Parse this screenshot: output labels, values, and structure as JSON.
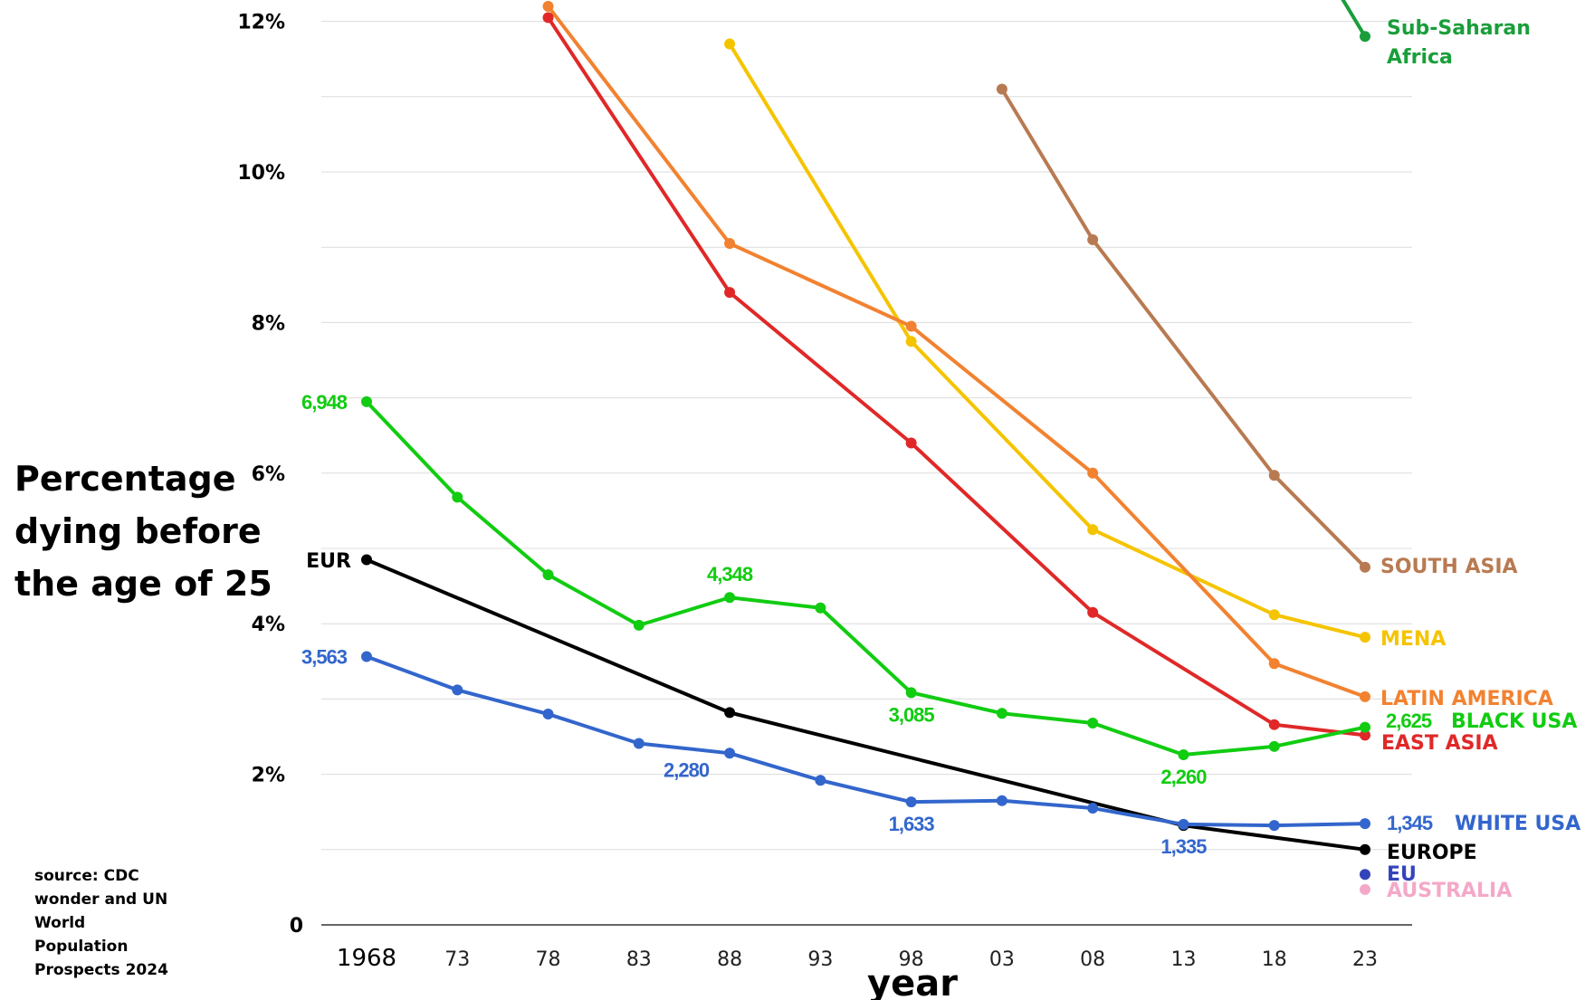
{
  "chart_data": {
    "type": "line",
    "ylabel_lines": [
      "Percentage",
      "dying before",
      "the age of 25"
    ],
    "xlabel": "year",
    "source_lines": [
      "source: CDC",
      "wonder and UN",
      "World",
      "Population",
      "Prospects 2024"
    ],
    "x": [
      1968,
      1973,
      1978,
      1983,
      1988,
      1993,
      1998,
      2003,
      2008,
      2013,
      2018,
      2023
    ],
    "xtick_labels": [
      "1968",
      "73",
      "78",
      "83",
      "88",
      "93",
      "98",
      "03",
      "08",
      "13",
      "18",
      "23"
    ],
    "ylim": [
      0,
      12.2
    ],
    "yticks": [
      0,
      2,
      4,
      6,
      8,
      10,
      12
    ],
    "ytick_labels": [
      "0",
      "2%",
      "4%",
      "6%",
      "8%",
      "10%",
      "12%"
    ],
    "grid": true,
    "series": [
      {
        "name": "Sub-Saharan Africa",
        "label_lines": [
          "Sub-Saharan",
          "Africa"
        ],
        "color": "#1a9e3a",
        "x": [
          2021.5,
          2023
        ],
        "values": [
          12.4,
          11.8
        ]
      },
      {
        "name": "SOUTH ASIA",
        "color": "#b87a52",
        "x": [
          2003,
          2008,
          2018,
          2023
        ],
        "values": [
          11.1,
          9.1,
          5.97,
          4.75
        ]
      },
      {
        "name": "MENA",
        "color": "#f5c400",
        "x": [
          1988,
          1998,
          2008,
          2018,
          2023
        ],
        "values": [
          11.7,
          7.75,
          5.25,
          4.12,
          3.82
        ]
      },
      {
        "name": "LATIN AMERICA",
        "color": "#f28230",
        "x": [
          1978,
          1988,
          1998,
          2008,
          2018,
          2023
        ],
        "values": [
          12.2,
          9.05,
          7.95,
          6.0,
          3.47,
          3.03
        ]
      },
      {
        "name": "EAST ASIA",
        "color": "#e02828",
        "x": [
          1978,
          1988,
          1998,
          2008,
          2018,
          2023
        ],
        "values": [
          12.05,
          8.4,
          6.4,
          4.15,
          2.66,
          2.52
        ]
      },
      {
        "name": "BLACK USA",
        "color": "#11cc11",
        "x": [
          1968,
          1973,
          1978,
          1983,
          1988,
          1993,
          1998,
          2003,
          2008,
          2013,
          2018,
          2023
        ],
        "values": [
          6.948,
          5.68,
          4.65,
          3.98,
          4.348,
          4.21,
          3.085,
          2.81,
          2.68,
          2.26,
          2.37,
          2.625
        ],
        "point_labels": [
          {
            "x": 1968,
            "text": "6,948"
          },
          {
            "x": 1988,
            "text": "4,348"
          },
          {
            "x": 1998,
            "text": "3,085"
          },
          {
            "x": 2013,
            "text": "2,260"
          },
          {
            "x": 2023,
            "text": "2,625"
          }
        ]
      },
      {
        "name": "EUROPE",
        "short_name": "EUR",
        "color": "#000000",
        "x": [
          1968,
          1988,
          2013,
          2023
        ],
        "values": [
          4.85,
          2.82,
          1.32,
          1.0
        ]
      },
      {
        "name": "WHITE USA",
        "color": "#3366cc",
        "x": [
          1968,
          1973,
          1978,
          1983,
          1988,
          1993,
          1998,
          2003,
          2008,
          2013,
          2018,
          2023
        ],
        "values": [
          3.563,
          3.12,
          2.8,
          2.41,
          2.28,
          1.92,
          1.633,
          1.65,
          1.55,
          1.335,
          1.32,
          1.345
        ],
        "point_labels": [
          {
            "x": 1968,
            "text": "3,563"
          },
          {
            "x": 1988,
            "text": "2,280"
          },
          {
            "x": 1998,
            "text": "1,633"
          },
          {
            "x": 2013,
            "text": "1,335"
          },
          {
            "x": 2023,
            "text": "1,345"
          }
        ]
      },
      {
        "name": "EU",
        "color": "#3344bb",
        "x": [
          2023
        ],
        "values": [
          0.67
        ]
      },
      {
        "name": "AUSTRALIA",
        "color": "#f4a8c8",
        "x": [
          2023
        ],
        "values": [
          0.47
        ]
      }
    ]
  }
}
